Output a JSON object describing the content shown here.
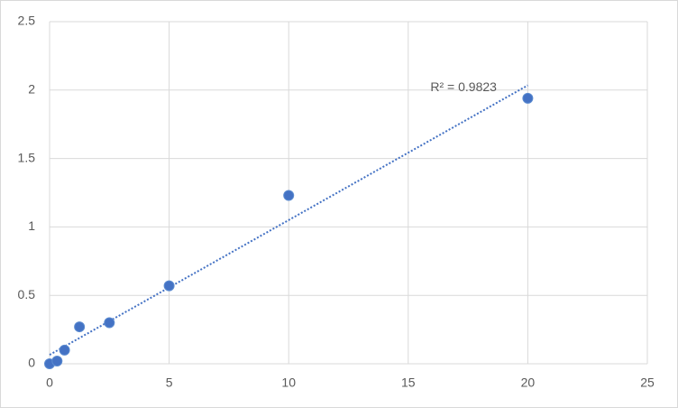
{
  "chart_data": {
    "type": "scatter",
    "x": [
      0,
      0.3125,
      0.625,
      1.25,
      2.5,
      5,
      10,
      20
    ],
    "values": [
      0.0,
      0.02,
      0.1,
      0.27,
      0.3,
      0.57,
      1.23,
      1.94
    ],
    "color": "#4472c4",
    "xlim": [
      0,
      25
    ],
    "xticks": [
      0,
      5,
      10,
      15,
      20,
      25
    ],
    "ylim": [
      0,
      2.5
    ],
    "yticks": [
      0,
      0.5,
      1,
      1.5,
      2,
      2.5
    ],
    "grid": true,
    "trendline": "linear",
    "annotation": "R² = 0.9823"
  }
}
